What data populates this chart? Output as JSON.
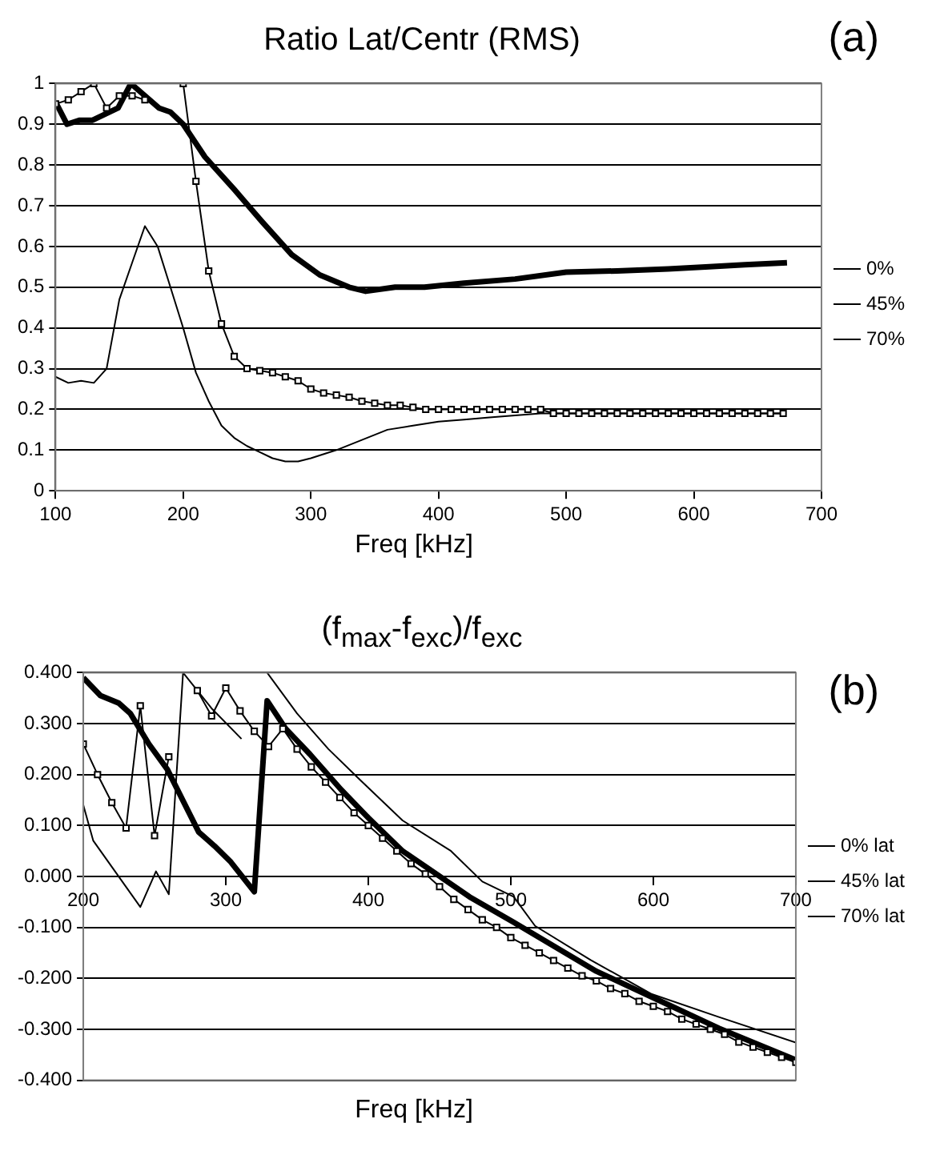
{
  "chart_data": [
    {
      "type": "line",
      "title": "Ratio Lat/Centr (RMS)",
      "xlabel": "Freq [kHz]",
      "annotations": [
        "(a)"
      ],
      "xlim": [
        100,
        700
      ],
      "xticks": [
        100,
        200,
        300,
        400,
        500,
        600,
        700
      ],
      "ylim": [
        0,
        1
      ],
      "yticks": [
        0,
        0.1,
        0.2,
        0.3,
        0.4,
        0.5,
        0.6,
        0.7,
        0.8,
        0.9,
        1
      ],
      "grid": "y",
      "legend": "right",
      "series": [
        {
          "name": "0%",
          "color": "#000000",
          "marker": "none",
          "x": [
            100,
            110,
            120,
            130,
            140,
            150,
            160,
            170,
            180,
            190,
            200,
            210,
            220,
            230,
            240,
            250,
            260,
            270,
            280,
            290,
            300,
            320,
            340,
            360,
            380,
            400,
            420,
            440,
            460,
            480,
            500,
            550,
            600,
            670
          ],
          "values": [
            0.28,
            0.265,
            0.27,
            0.265,
            0.3,
            0.47,
            0.56,
            0.65,
            0.6,
            0.5,
            0.4,
            0.29,
            0.22,
            0.16,
            0.13,
            0.11,
            0.095,
            0.08,
            0.072,
            0.072,
            0.08,
            0.1,
            0.125,
            0.15,
            0.16,
            0.17,
            0.175,
            0.18,
            0.185,
            0.19,
            0.19,
            0.19,
            0.19,
            0.19
          ]
        },
        {
          "name": "45%",
          "color": "#000000",
          "marker": "square",
          "x": [
            100,
            110,
            120,
            130,
            140,
            150,
            160,
            170,
            180,
            190,
            200,
            210,
            220,
            230,
            240,
            250,
            260,
            270,
            280,
            290,
            300,
            310,
            320,
            330,
            340,
            350,
            360,
            370,
            380,
            390,
            400,
            410,
            420,
            430,
            440,
            450,
            460,
            470,
            480,
            490,
            500,
            510,
            520,
            530,
            540,
            550,
            560,
            570,
            580,
            590,
            600,
            610,
            620,
            630,
            640,
            650,
            660,
            670
          ],
          "values": [
            0.95,
            0.96,
            0.98,
            1,
            0.94,
            0.97,
            0.97,
            0.96,
            null,
            null,
            1,
            0.76,
            0.54,
            0.41,
            0.33,
            0.3,
            0.295,
            0.29,
            0.28,
            0.27,
            0.25,
            0.24,
            0.235,
            0.23,
            0.22,
            0.215,
            0.21,
            0.21,
            0.205,
            0.2,
            0.2,
            0.2,
            0.2,
            0.2,
            0.2,
            0.2,
            0.2,
            0.2,
            0.2,
            0.19,
            0.19,
            0.19,
            0.19,
            0.19,
            0.19,
            0.19,
            0.19,
            0.19,
            0.19,
            0.19,
            0.19,
            0.19,
            0.19,
            0.19,
            0.19,
            0.19,
            0.19,
            0.19
          ]
        },
        {
          "name": "70%",
          "color": "#000000",
          "marker": "none",
          "x": [
            100,
            109,
            119,
            129,
            149,
            159,
            170,
            181,
            190,
            200,
            217,
            240,
            262,
            285,
            307,
            330,
            343,
            366,
            389,
            420,
            460,
            500,
            540,
            580,
            612,
            640,
            673
          ],
          "values": [
            0.955,
            0.9,
            0.91,
            0.91,
            0.94,
            1,
            0.97,
            0.94,
            0.93,
            0.9,
            0.82,
            0.74,
            0.66,
            0.58,
            0.53,
            0.5,
            0.49,
            0.5,
            0.5,
            0.51,
            0.52,
            0.537,
            0.54,
            0.545,
            0.55,
            0.555,
            0.56
          ]
        }
      ]
    },
    {
      "type": "line",
      "title": "(f$_{max}$-f$_{exc}$)/f$_{exc}$",
      "xlabel": "Freq [kHz]",
      "annotations": [
        "(b)"
      ],
      "xlim": [
        200,
        700
      ],
      "xticks": [
        200,
        300,
        400,
        500,
        600,
        700
      ],
      "ylim": [
        -0.4,
        0.4
      ],
      "yticks": [
        {
          "value": -0.4,
          "label": "-0.400"
        },
        {
          "value": -0.3,
          "label": "-0.300"
        },
        {
          "value": -0.2,
          "label": "-0.200"
        },
        {
          "value": -0.1,
          "label": "-0.100"
        },
        {
          "value": 0,
          "label": "0.000"
        },
        {
          "value": 0.1,
          "label": "0.100"
        },
        {
          "value": 0.2,
          "label": "0.200"
        },
        {
          "value": 0.3,
          "label": "0.300"
        },
        {
          "value": 0.4,
          "label": "0.400"
        }
      ],
      "grid": "y",
      "legend": "right",
      "series": [
        {
          "name": "0% lat",
          "color": "#000000",
          "marker": "none",
          "x": [
            200,
            207,
            240,
            251,
            260,
            270,
            290,
            311,
            320,
            329,
            350,
            372,
            394,
            424,
            458,
            480,
            502,
            517,
            556,
            599,
            646,
            700
          ],
          "values": [
            0.14,
            0.07,
            -0.06,
            0.01,
            -0.035,
            0.4,
            0.33,
            0.27,
            null,
            0.4,
            0.32,
            0.25,
            0.19,
            0.11,
            0.05,
            -0.01,
            -0.04,
            -0.097,
            -0.164,
            -0.231,
            -0.276,
            -0.326
          ]
        },
        {
          "name": "45% lat",
          "color": "#000000",
          "marker": "square",
          "x": [
            200,
            210,
            220,
            230,
            240,
            250,
            260,
            270,
            280,
            290,
            300,
            310,
            320,
            330,
            340,
            350,
            360,
            370,
            380,
            390,
            400,
            410,
            420,
            430,
            440,
            450,
            460,
            470,
            480,
            490,
            500,
            510,
            520,
            530,
            540,
            550,
            560,
            570,
            580,
            590,
            600,
            610,
            620,
            630,
            640,
            650,
            660,
            670,
            680,
            690,
            700
          ],
          "values": [
            0.26,
            0.2,
            0.145,
            0.095,
            0.335,
            0.08,
            0.235,
            null,
            0.365,
            0.315,
            0.37,
            0.325,
            0.285,
            0.255,
            0.29,
            0.25,
            0.215,
            0.185,
            0.155,
            0.125,
            0.1,
            0.075,
            0.05,
            0.025,
            0.005,
            -0.02,
            -0.045,
            -0.065,
            -0.085,
            -0.1,
            -0.12,
            -0.135,
            -0.15,
            -0.165,
            -0.18,
            -0.195,
            -0.205,
            -0.22,
            -0.23,
            -0.245,
            -0.255,
            -0.265,
            -0.28,
            -0.29,
            -0.3,
            -0.31,
            -0.325,
            -0.335,
            -0.345,
            -0.355,
            -0.365
          ]
        },
        {
          "name": "70% lat",
          "color": "#000000",
          "marker": "none",
          "x": [
            200,
            212,
            225,
            233,
            246,
            259,
            281,
            292,
            303,
            320,
            329,
            342,
            359,
            381,
            400,
            424,
            445,
            471,
            502,
            560,
            603,
            646,
            700
          ],
          "values": [
            0.39,
            0.355,
            0.34,
            0.32,
            0.26,
            0.21,
            0.087,
            0.06,
            0.03,
            -0.03,
            0.345,
            0.29,
            0.24,
            0.17,
            0.115,
            0.05,
            0.01,
            -0.04,
            -0.09,
            -0.186,
            -0.242,
            -0.298,
            -0.36
          ]
        }
      ]
    }
  ]
}
